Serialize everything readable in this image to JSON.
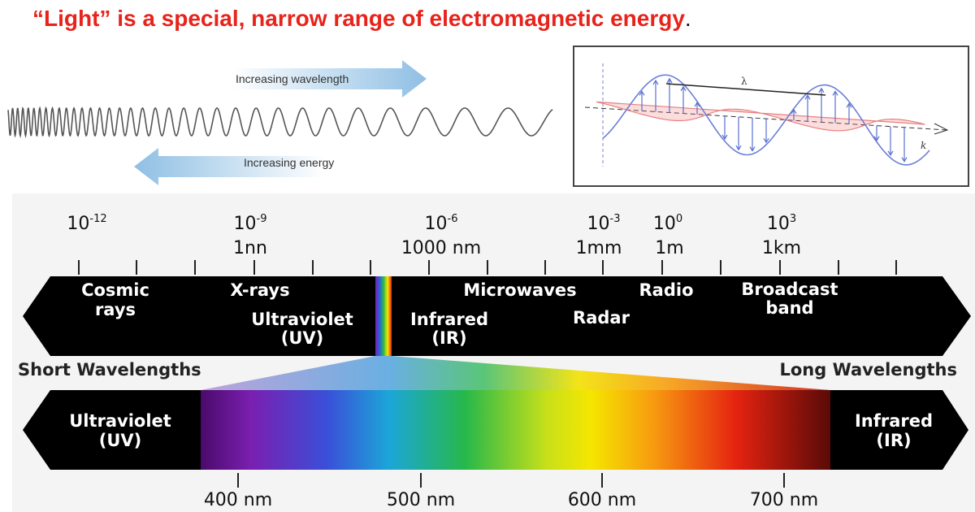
{
  "header": {
    "title": "“Light” is a special, narrow range of electromagnetic energy",
    "title_period": "."
  },
  "wave_figure": {
    "wavelength_arrow": "Increasing wavelength",
    "energy_arrow": "Increasing energy"
  },
  "wave_inset": {
    "lambda": "λ",
    "k": "k"
  },
  "scale": [
    {
      "base": "10",
      "exp": "-12",
      "unit": null
    },
    {
      "base": "10",
      "exp": "-9",
      "unit": "1nn"
    },
    {
      "base": "10",
      "exp": "-6",
      "unit": "1000 nm"
    },
    {
      "base": "10",
      "exp": "-3",
      "unit": "1mm"
    },
    {
      "base": "10",
      "exp": "0",
      "unit": "1m"
    },
    {
      "base": "10",
      "exp": "3",
      "unit": "1km"
    }
  ],
  "bands": {
    "cosmic": [
      "Cosmic",
      "rays"
    ],
    "xrays": "X-rays",
    "uv": [
      "Ultraviolet",
      "(UV)"
    ],
    "microwaves": "Microwaves",
    "radio": "Radio",
    "broadcast": [
      "Broadcast",
      "band"
    ],
    "ir": [
      "Infrared",
      "(IR)"
    ],
    "radar": "Radar"
  },
  "short_wavelengths": "Short Wavelengths",
  "long_wavelengths": "Long Wavelengths",
  "visible": {
    "uv": [
      "Ultraviolet",
      "(UV)"
    ],
    "ir": [
      "Infrared",
      "(IR)"
    ],
    "ticks": [
      "400 nm",
      "500 nm",
      "600 nm",
      "700 nm"
    ]
  }
}
